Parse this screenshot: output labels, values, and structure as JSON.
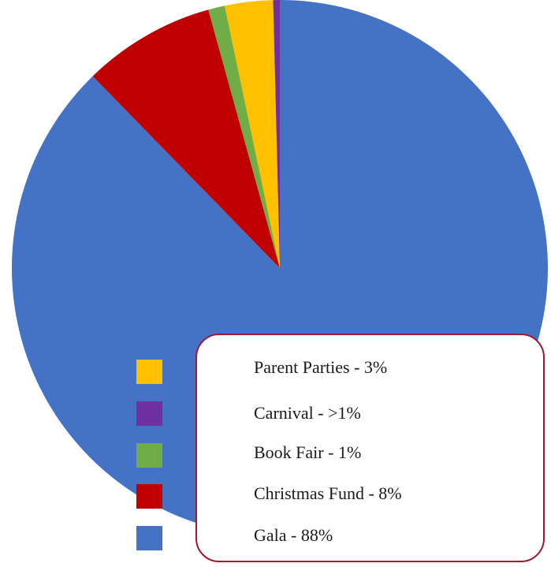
{
  "chart_data": {
    "type": "pie",
    "title": "",
    "start_angle_deg": 0,
    "direction": "clockwise",
    "legend_placement": "bottom-right",
    "slices": [
      {
        "label": "Gala",
        "legend_text": "Gala - 88%",
        "value": 87.7,
        "color": "#4472c4"
      },
      {
        "label": "Christmas Fund",
        "legend_text": "Christmas Fund - 8%",
        "value": 8.0,
        "color": "#c00000"
      },
      {
        "label": "Book Fair",
        "legend_text": "Book Fair - 1%",
        "value": 1.0,
        "color": "#70ad47"
      },
      {
        "label": "Parent Parties",
        "legend_text": "Parent Parties - 3%",
        "value": 2.9,
        "color": "#ffc000"
      },
      {
        "label": "Carnival",
        "legend_text": "Carnival - >1%",
        "value": 0.4,
        "color": "#7030a0"
      }
    ],
    "legend_order": [
      3,
      4,
      2,
      1,
      0
    ]
  }
}
